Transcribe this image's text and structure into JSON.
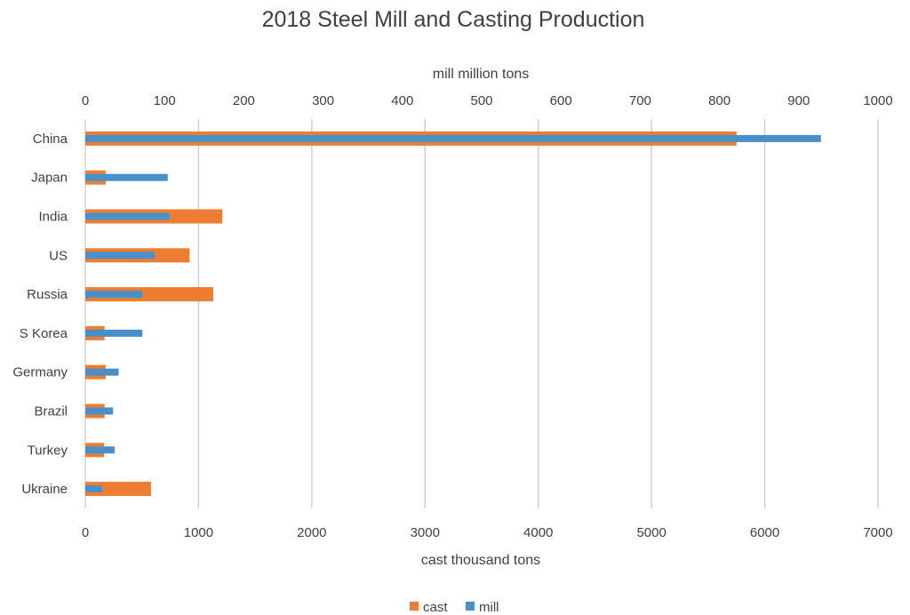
{
  "chart_data": {
    "type": "bar",
    "orientation": "horizontal",
    "title": "2018 Steel Mill and Casting Production",
    "categories": [
      "China",
      "Japan",
      "India",
      "US",
      "Russia",
      "S Korea",
      "Germany",
      "Brazil",
      "Turkey",
      "Ukraine"
    ],
    "series": [
      {
        "name": "cast",
        "color": "#ED7D31",
        "axis": "bottom",
        "values": [
          5750,
          180,
          1210,
          920,
          1130,
          170,
          180,
          170,
          165,
          580
        ]
      },
      {
        "name": "mill",
        "color": "#4A90C8",
        "axis": "top",
        "values": [
          928,
          104,
          106,
          87,
          72,
          72,
          42,
          35,
          37,
          21
        ]
      }
    ],
    "x_bottom": {
      "label": "cast thousand tons",
      "range": [
        0,
        7000
      ],
      "ticks": [
        "0",
        "1000",
        "2000",
        "3000",
        "4000",
        "5000",
        "6000",
        "7000"
      ]
    },
    "x_top": {
      "label": "mill million tons",
      "range": [
        0,
        1000
      ],
      "ticks": [
        "0",
        "100",
        "200",
        "300",
        "400",
        "500",
        "600",
        "700",
        "800",
        "900",
        "1000"
      ]
    },
    "grid": true,
    "legend": {
      "position": "bottom",
      "entries": [
        "cast",
        "mill"
      ]
    }
  }
}
